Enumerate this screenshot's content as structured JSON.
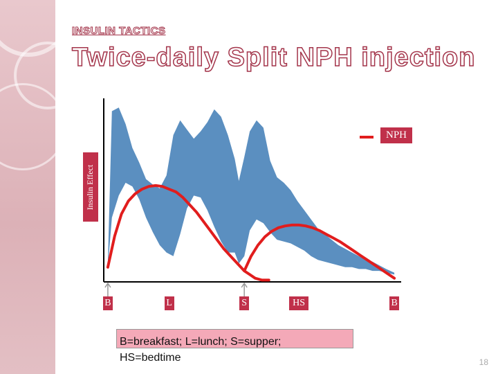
{
  "slide": {
    "section_title": "INSULIN TACTICS",
    "title": "Twice-daily Split NPH injection",
    "footnote": "B=breakfast; L=lunch; S=supper; HS=bedtime",
    "page_number": "18"
  },
  "colors": {
    "normal_band": "#5b8fc0",
    "nph_line": "#e11d1d",
    "label_box": "#c0304a",
    "title_outline": "#a3344a",
    "footnote_bg": "#f4a9b8"
  },
  "chart_data": {
    "type": "area",
    "title": "",
    "xlabel": "",
    "ylabel": "Insulin Effect",
    "ticks": [
      {
        "label": "B",
        "x": 0
      },
      {
        "label": "L",
        "x": 4.5
      },
      {
        "label": "S",
        "x": 10
      },
      {
        "label": "HS",
        "x": 14
      },
      {
        "label": "B",
        "x": 21
      }
    ],
    "xlim": [
      -0.3,
      21.5
    ],
    "ylim": [
      0,
      100
    ],
    "series": [
      {
        "name": "",
        "kind": "band",
        "x": [
          0,
          0.3,
          0.8,
          1.3,
          1.8,
          2.3,
          2.8,
          3.3,
          3.8,
          4.3,
          4.8,
          5.3,
          5.8,
          6.3,
          6.8,
          7.3,
          7.8,
          8.3,
          8.8,
          9.3,
          9.6,
          10.0,
          10.4,
          10.9,
          11.4,
          11.9,
          12.4,
          12.9,
          13.4,
          13.9,
          14.4,
          14.9,
          15.4,
          15.9,
          16.4,
          16.9,
          17.4,
          17.9,
          18.4,
          18.9,
          19.4,
          19.9,
          20.4,
          21.0
        ],
        "lower": [
          8,
          35,
          47,
          54,
          52,
          45,
          35,
          27,
          20,
          16,
          14,
          26,
          40,
          47,
          46,
          39,
          30,
          22,
          16,
          16,
          10,
          14,
          28,
          34,
          32,
          27,
          23,
          22,
          21,
          19,
          17,
          14,
          12,
          11,
          10,
          9,
          8,
          8,
          7,
          7,
          6,
          6,
          5,
          4
        ],
        "upper": [
          10,
          93,
          95,
          86,
          73,
          65,
          56,
          53,
          51,
          58,
          80,
          88,
          83,
          78,
          82,
          87,
          94,
          90,
          80,
          67,
          55,
          68,
          82,
          88,
          84,
          66,
          57,
          54,
          50,
          44,
          39,
          34,
          29,
          26,
          23,
          20,
          18,
          16,
          14,
          12,
          11,
          9,
          7,
          5
        ]
      },
      {
        "name": "NPH",
        "kind": "line",
        "segments": [
          {
            "x": [
              0,
              0.5,
              1.0,
              1.5,
              2.0,
              2.5,
              3.0,
              3.5,
              4.0,
              4.5,
              5.0,
              5.5,
              6.0,
              6.5,
              7.0,
              7.5,
              8.0,
              8.5,
              9.0,
              9.5,
              10.0,
              10.4,
              10.8,
              11.3,
              11.8
            ],
            "y": [
              8,
              25,
              37,
              44,
              48,
              50.5,
              52,
              52.5,
              52,
              50.5,
              49,
              46,
              42,
              38,
              33,
              28,
              23,
              18,
              14,
              10,
              6,
              4,
              2,
              1,
              1
            ]
          },
          {
            "x": [
              10.0,
              10.5,
              11.0,
              11.5,
              12.0,
              12.5,
              13.0,
              13.5,
              14.0,
              14.5,
              15.0,
              15.5,
              16.0,
              16.5,
              17.0,
              17.5,
              18.0,
              18.5,
              19.0,
              19.5,
              20.0,
              20.5,
              21.0
            ],
            "y": [
              6,
              14,
              20,
              24.5,
              27.5,
              29.5,
              30.5,
              31,
              31,
              30.5,
              29.5,
              28,
              26,
              24,
              22,
              19.5,
              17,
              14.5,
              12,
              9.5,
              7,
              4.5,
              2
            ]
          }
        ]
      }
    ],
    "legend": "top-right",
    "grid": false
  }
}
